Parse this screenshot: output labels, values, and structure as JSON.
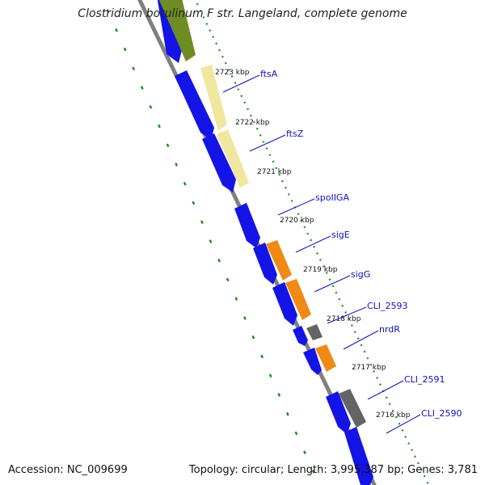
{
  "title": "Clostridium botulinum F str. Langeland, complete genome",
  "footer": {
    "accession": "Accession: NC_009699",
    "summary": "Topology: circular; Length: 3,995,387 bp; Genes: 3,781"
  },
  "colors": {
    "background": "#ffffff",
    "backbone": "#808080",
    "cds_blue": "#1414e6",
    "orange": "#f08a14",
    "pale_yellow": "#f0e6a0",
    "olive": "#6e8c23",
    "grey_gene": "#646464",
    "tick_dots": "#1e8c1e",
    "label": "#1010b8"
  },
  "ticks": [
    "2723 kbp",
    "2722 kbp",
    "2721 kbp",
    "2720 kbp",
    "2719 kbp",
    "2718 kbp",
    "2717 kbp",
    "2716 kbp"
  ],
  "genes": [
    {
      "name": "ftsA",
      "ring": "outer",
      "color": "pale_yellow",
      "start": 2722.45,
      "end": 2723.2
    },
    {
      "name": "ftsZ",
      "ring": "outer",
      "color": "pale_yellow",
      "start": 2721.35,
      "end": 2722.2
    },
    {
      "name": "spoIIGA",
      "ring": "inner",
      "color": "cds_blue",
      "start": 2720.0,
      "end": 2720.55
    },
    {
      "name": "sigE",
      "ring": "outer",
      "color": "orange",
      "start": 2719.1,
      "end": 2719.75
    },
    {
      "name": "sigG",
      "ring": "outer",
      "color": "orange",
      "start": 2718.4,
      "end": 2719.05
    },
    {
      "name": "CLI_2593",
      "ring": "outer",
      "color": "grey_gene",
      "start": 2718.1,
      "end": 2718.35
    },
    {
      "name": "nrdR",
      "ring": "outer",
      "color": "orange",
      "start": 2717.45,
      "end": 2717.9
    },
    {
      "name": "CLI_2591",
      "ring": "outer",
      "color": "grey_gene",
      "start": 2715.95,
      "end": 2716.75
    },
    {
      "name": "CLI_2590",
      "ring": "inner",
      "color": "cds_blue",
      "start": 2715.4,
      "end": 2715.95
    }
  ]
}
